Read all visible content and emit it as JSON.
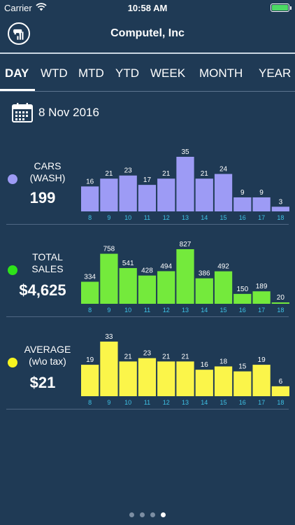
{
  "status_bar": {
    "carrier": "Carrier",
    "time": "10:58 AM"
  },
  "header": {
    "title": "Computel, Inc",
    "logo_icon": "car-wash-logo-icon"
  },
  "tabs": [
    {
      "label": "DAY",
      "active": true
    },
    {
      "label": "WTD",
      "active": false
    },
    {
      "label": "MTD",
      "active": false
    },
    {
      "label": "YTD",
      "active": false
    },
    {
      "label": "WEEK",
      "active": false
    },
    {
      "label": "MONTH",
      "active": false
    },
    {
      "label": "YEAR",
      "active": false
    }
  ],
  "date": {
    "text": "8 Nov 2016",
    "icon": "calendar-icon"
  },
  "sections": [
    {
      "label_line1": "CARS",
      "label_line2": "(WASH)",
      "value": "199",
      "dot_color": "#9d9bf5"
    },
    {
      "label_line1": "TOTAL",
      "label_line2": "SALES",
      "value": "$4,625",
      "dot_color": "#2ee21a"
    },
    {
      "label_line1": "AVERAGE",
      "label_line2": "(w\\o tax)",
      "value": "$21",
      "dot_color": "#f7f41f"
    }
  ],
  "pager": {
    "count": 4,
    "active": 3
  },
  "chart_data": [
    {
      "type": "bar",
      "categories": [
        "8",
        "9",
        "10",
        "11",
        "12",
        "13",
        "14",
        "15",
        "16",
        "17",
        "18"
      ],
      "values": [
        16,
        21,
        23,
        17,
        21,
        35,
        21,
        24,
        9,
        9,
        3
      ],
      "data_labels": [
        "16",
        "21",
        "23",
        "17",
        "21",
        "35",
        "21",
        "24",
        "9",
        "9",
        "3"
      ],
      "color": "#9d9bf5"
    },
    {
      "type": "bar",
      "categories": [
        "8",
        "9",
        "10",
        "11",
        "12",
        "13",
        "14",
        "15",
        "16",
        "17",
        "18"
      ],
      "values": [
        334,
        758,
        541,
        428,
        494,
        827,
        386,
        492,
        150,
        189,
        20
      ],
      "data_labels": [
        "334",
        "758",
        "541",
        "428",
        "494",
        "827",
        "386",
        "492",
        "150",
        "189",
        "20"
      ],
      "color": "#74ea3c"
    },
    {
      "type": "bar",
      "categories": [
        "8",
        "9",
        "10",
        "11",
        "12",
        "13",
        "14",
        "15",
        "16",
        "17",
        "18"
      ],
      "values": [
        19,
        33,
        21,
        23,
        21,
        21,
        16,
        18,
        15,
        19,
        6
      ],
      "data_labels": [
        "19",
        "33",
        "21",
        "23",
        "21",
        "21",
        "16",
        "18",
        "15",
        "19",
        "6"
      ],
      "color": "#fbf54a"
    }
  ],
  "colors": {
    "background": "#1f3a55",
    "tick_label": "#3fc3e6",
    "bar_text": "#ffffff"
  }
}
